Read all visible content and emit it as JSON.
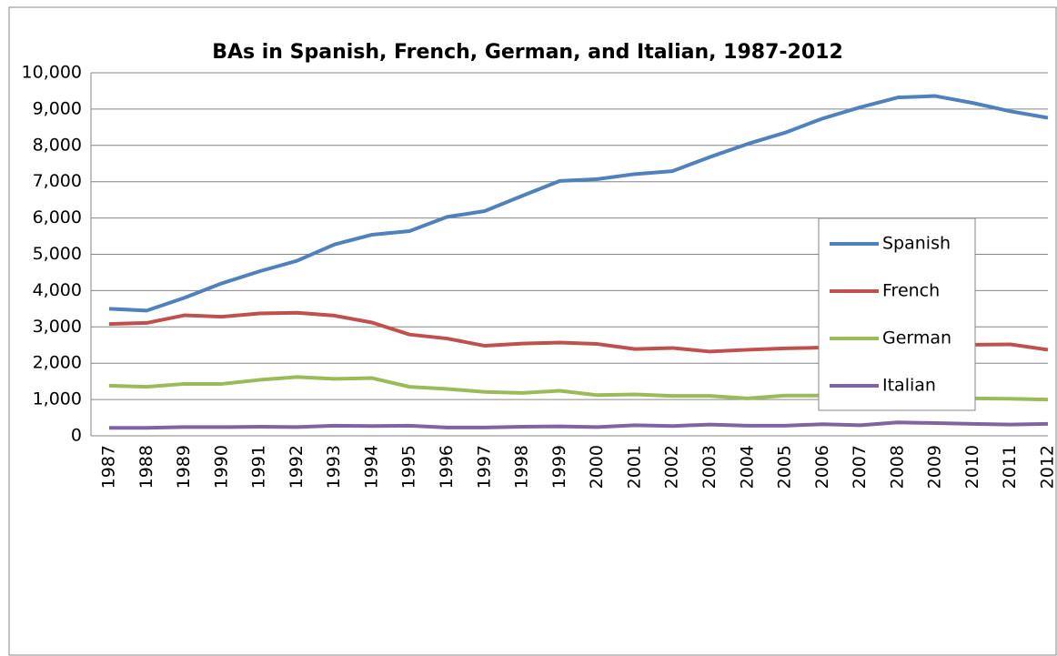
{
  "chart_data": {
    "type": "line",
    "title": "BAs in Spanish, French, German, and Italian, 1987-2012",
    "categories": [
      "1987",
      "1988",
      "1989",
      "1990",
      "1991",
      "1992",
      "1993",
      "1994",
      "1995",
      "1996",
      "1997",
      "1998",
      "1999",
      "2000",
      "2001",
      "2002",
      "2003",
      "2004",
      "2005",
      "2006",
      "2007",
      "2008",
      "2009",
      "2010",
      "2011",
      "2012"
    ],
    "series": [
      {
        "name": "Spanish",
        "color": "#4f81bd",
        "values": [
          3500,
          3450,
          3800,
          4200,
          4530,
          4820,
          5270,
          5540,
          5640,
          6030,
          6190,
          6610,
          7020,
          7070,
          7210,
          7290,
          7680,
          8040,
          8350,
          8740,
          9050,
          9320,
          9360,
          9170,
          8940,
          8760
        ]
      },
      {
        "name": "French",
        "color": "#c0504d",
        "values": [
          3080,
          3110,
          3320,
          3280,
          3370,
          3390,
          3310,
          3120,
          2790,
          2680,
          2480,
          2540,
          2570,
          2530,
          2390,
          2420,
          2320,
          2370,
          2410,
          2430,
          2470,
          2450,
          2460,
          2510,
          2520,
          2370
        ]
      },
      {
        "name": "German",
        "color": "#9bbb59",
        "values": [
          1380,
          1350,
          1430,
          1430,
          1540,
          1620,
          1570,
          1590,
          1350,
          1290,
          1210,
          1180,
          1240,
          1120,
          1140,
          1100,
          1100,
          1030,
          1110,
          1110,
          1050,
          1080,
          1050,
          1030,
          1020,
          1000
        ]
      },
      {
        "name": "Italian",
        "color": "#8064a2",
        "values": [
          220,
          220,
          240,
          240,
          250,
          240,
          280,
          270,
          280,
          230,
          230,
          250,
          260,
          240,
          290,
          270,
          310,
          280,
          280,
          320,
          290,
          370,
          350,
          330,
          310,
          330
        ]
      }
    ],
    "ylim": [
      0,
      10000
    ],
    "yticks": [
      0,
      {
        "value": 1000,
        "label": "1,000"
      },
      {
        "value": 2000,
        "label": "2,000"
      },
      {
        "value": 3000,
        "label": "3,000"
      },
      {
        "value": 4000,
        "label": "4,000"
      },
      {
        "value": 5000,
        "label": "5,000"
      },
      {
        "value": 6000,
        "label": "6,000"
      },
      {
        "value": 7000,
        "label": "7,000"
      },
      {
        "value": 8000,
        "label": "8,000"
      },
      {
        "value": 9000,
        "label": "9,000"
      },
      {
        "value": 10000,
        "label": "10,000"
      }
    ],
    "grid": true,
    "legend": "right"
  }
}
